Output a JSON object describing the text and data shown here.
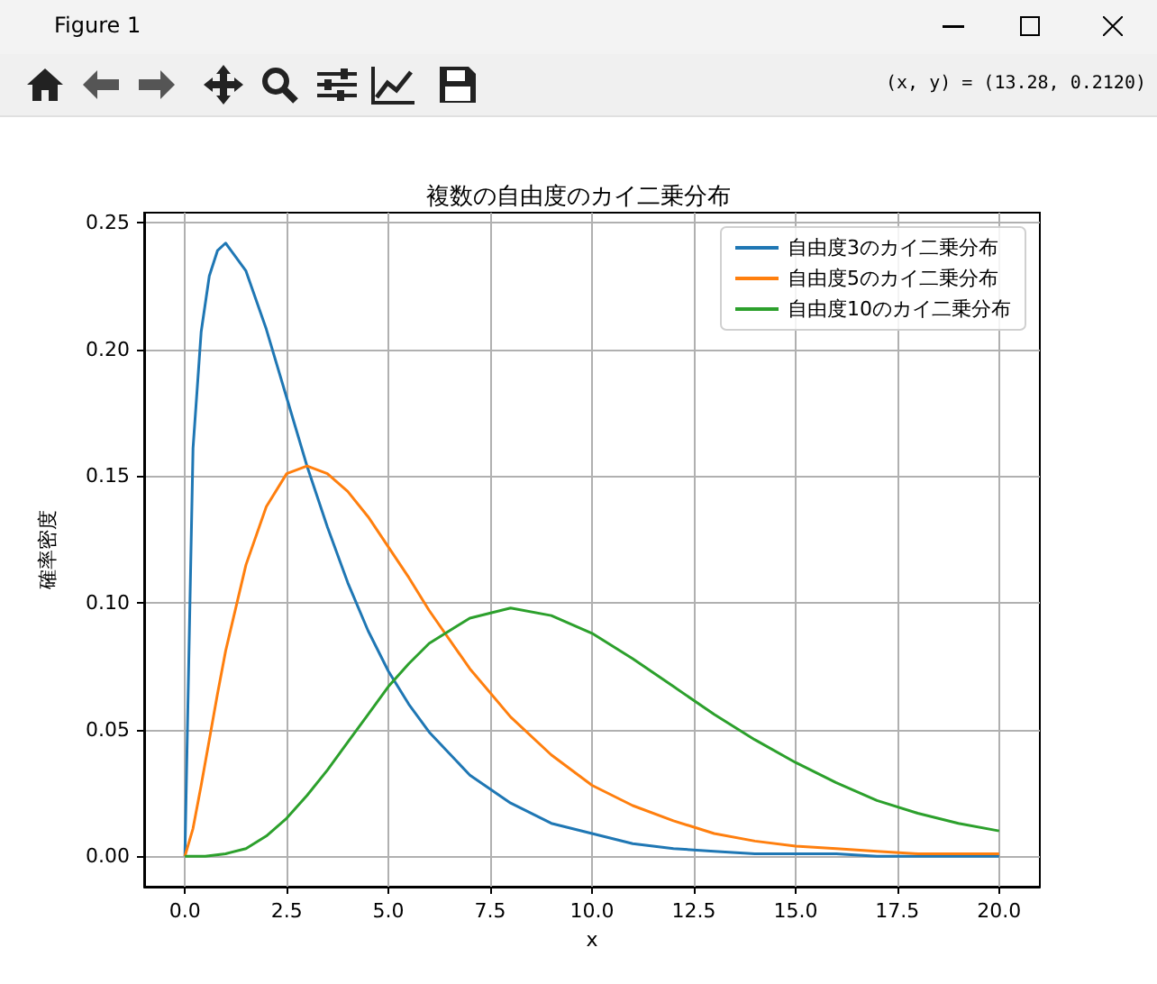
{
  "chart_data": {
    "type": "line",
    "title": "複数の自由度のカイ二乗分布",
    "xlabel": "x",
    "ylabel": "確率密度",
    "annotations": [
      "Figure 1",
      "(x, y) = (13.28, 0.2120)"
    ],
    "series": [
      {
        "name": "自由度3のカイ二乗分布",
        "color": "#1f77b4",
        "x": [
          0,
          0.2,
          0.4,
          0.6,
          0.8,
          1,
          1.5,
          2,
          2.5,
          3,
          3.5,
          4,
          4.5,
          5,
          5.5,
          6,
          7,
          8,
          9,
          10,
          11,
          12,
          13,
          14,
          15,
          16,
          17,
          18,
          19,
          20
        ],
        "values": [
          0,
          0.161,
          0.207,
          0.229,
          0.239,
          0.242,
          0.231,
          0.208,
          0.181,
          0.154,
          0.13,
          0.108,
          0.089,
          0.073,
          0.06,
          0.049,
          0.032,
          0.021,
          0.013,
          0.009,
          0.005,
          0.003,
          0.002,
          0.001,
          0.001,
          0.001,
          0.0,
          0.0,
          0.0,
          0.0
        ]
      },
      {
        "name": "自由度5のカイ二乗分布",
        "color": "#ff7f0e",
        "x": [
          0,
          0.2,
          0.4,
          0.6,
          0.8,
          1,
          1.5,
          2,
          2.5,
          3,
          3.5,
          4,
          4.5,
          5,
          5.5,
          6,
          7,
          8,
          9,
          10,
          11,
          12,
          13,
          14,
          15,
          16,
          17,
          18,
          19,
          20
        ],
        "values": [
          0,
          0.011,
          0.028,
          0.046,
          0.064,
          0.081,
          0.115,
          0.138,
          0.151,
          0.154,
          0.151,
          0.144,
          0.134,
          0.122,
          0.11,
          0.097,
          0.074,
          0.055,
          0.04,
          0.028,
          0.02,
          0.014,
          0.009,
          0.006,
          0.004,
          0.003,
          0.002,
          0.001,
          0.001,
          0.001
        ]
      },
      {
        "name": "自由度10のカイ二乗分布",
        "color": "#2ca02c",
        "x": [
          0,
          0.5,
          1,
          1.5,
          2,
          2.5,
          3,
          3.5,
          4,
          4.5,
          5,
          5.5,
          6,
          7,
          8,
          9,
          10,
          11,
          12,
          13,
          14,
          15,
          16,
          17,
          18,
          19,
          20
        ],
        "values": [
          0,
          0.0,
          0.001,
          0.003,
          0.008,
          0.015,
          0.024,
          0.034,
          0.045,
          0.056,
          0.067,
          0.076,
          0.084,
          0.094,
          0.098,
          0.095,
          0.088,
          0.078,
          0.067,
          0.056,
          0.046,
          0.037,
          0.029,
          0.022,
          0.017,
          0.013,
          0.01
        ]
      }
    ],
    "xlim": [
      -1,
      21
    ],
    "xticks": [
      {
        "value": 0,
        "label": "0.0"
      },
      {
        "value": 2.5,
        "label": "2.5"
      },
      {
        "value": 5,
        "label": "5.0"
      },
      {
        "value": 7.5,
        "label": "7.5"
      },
      {
        "value": 10,
        "label": "10.0"
      },
      {
        "value": 12.5,
        "label": "12.5"
      },
      {
        "value": 15,
        "label": "15.0"
      },
      {
        "value": 17.5,
        "label": "17.5"
      },
      {
        "value": 20,
        "label": "20.0"
      }
    ],
    "ylim": [
      -0.012,
      0.254
    ],
    "yticks": [
      {
        "value": 0,
        "label": "0.00"
      },
      {
        "value": 0.05,
        "label": "0.05"
      },
      {
        "value": 0.1,
        "label": "0.10"
      },
      {
        "value": 0.15,
        "label": "0.15"
      },
      {
        "value": 0.2,
        "label": "0.20"
      },
      {
        "value": 0.25,
        "label": "0.25"
      }
    ],
    "grid": true,
    "legend": "top right",
    "marker": "none",
    "line_style": "solid"
  }
}
